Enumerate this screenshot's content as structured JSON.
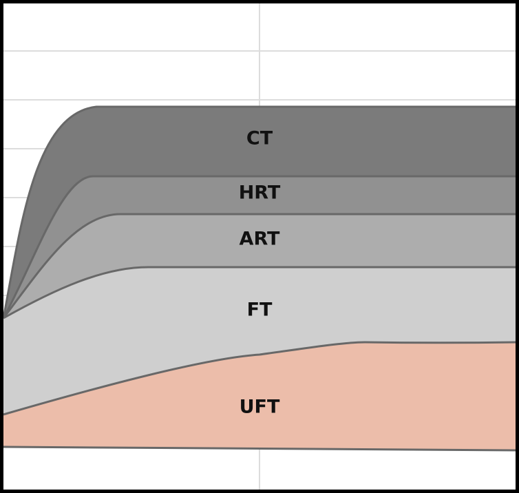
{
  "layers": [
    {
      "label": "CT"
    },
    {
      "label": "HRT"
    },
    {
      "label": "ART"
    },
    {
      "label": "FT"
    },
    {
      "label": "UFT"
    }
  ]
}
